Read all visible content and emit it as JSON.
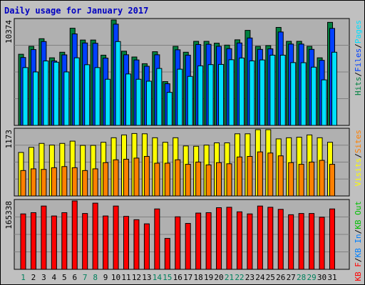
{
  "colors": {
    "background": "#C0C0C0",
    "panel_background": "#B0B0B0",
    "title": "#0000C0",
    "hits": "#008040",
    "files": "#0040FF",
    "pages": "#00E0FF",
    "visits": "#FFFF00",
    "sites": "#FF8000",
    "kbf": "#FF0000",
    "kbin": "#0080FF",
    "kbout": "#00C000",
    "weekend_day": "#00805C",
    "weekday_day": "#008040"
  },
  "chart_data": {
    "type": "bar",
    "title": "Daily usage for January 2017",
    "categories": [
      "1",
      "2",
      "3",
      "4",
      "5",
      "6",
      "7",
      "8",
      "9",
      "10",
      "11",
      "12",
      "13",
      "14",
      "15",
      "16",
      "17",
      "18",
      "19",
      "20",
      "21",
      "22",
      "23",
      "24",
      "25",
      "26",
      "27",
      "28",
      "29",
      "30",
      "31"
    ],
    "weekend_days": [
      "1",
      "7",
      "8",
      "14",
      "15",
      "21",
      "22",
      "28",
      "29"
    ],
    "panels": [
      {
        "name": "hits-files-pages",
        "max_label": "10374",
        "ymax": 10374,
        "legend": [
          "Hits",
          "/",
          "Files",
          "/",
          "Pages"
        ],
        "series": [
          {
            "name": "Hits",
            "values": [
              7000,
              7780,
              8530,
              6650,
              7200,
              9560,
              8400,
              8400,
              6910,
              10374,
              7300,
              6730,
              6070,
              7250,
              4310,
              7780,
              7200,
              8270,
              8270,
              8090,
              7900,
              8420,
              9350,
              7780,
              7850,
              9640,
              8270,
              8270,
              7780,
              6650,
              10140
            ]
          },
          {
            "name": "Files",
            "values": [
              6680,
              7460,
              8250,
              6340,
              6940,
              9000,
              8110,
              8080,
              6620,
              9960,
              6950,
              6440,
              5820,
              6950,
              4100,
              7440,
              6910,
              7960,
              7980,
              7780,
              7550,
              8110,
              8600,
              7480,
              7530,
              9190,
              8000,
              8000,
              7480,
              6400,
              9540
            ]
          },
          {
            "name": "Pages",
            "values": [
              5690,
              5260,
              6340,
              6220,
              5260,
              6650,
              5970,
              5690,
              4540,
              8250,
              5060,
              4540,
              4350,
              5600,
              3250,
              5530,
              4820,
              5860,
              5980,
              6000,
              6460,
              6630,
              6350,
              6440,
              6910,
              6910,
              6180,
              6170,
              5730,
              4480,
              7200
            ]
          }
        ]
      },
      {
        "name": "visits-sites",
        "max_label": "1173",
        "ymax": 1173,
        "legend": [
          "Visits",
          "/",
          "Sites"
        ],
        "series": [
          {
            "name": "Visits",
            "values": [
              770,
              860,
              930,
              900,
              930,
              970,
              895,
              895,
              950,
              1030,
              1080,
              1105,
              1100,
              1030,
              950,
              1030,
              885,
              880,
              900,
              940,
              940,
              1100,
              1100,
              1173,
              1173,
              1010,
              1030,
              1040,
              1080,
              1030,
              950
            ]
          },
          {
            "name": "Sites",
            "values": [
              450,
              480,
              470,
              500,
              520,
              500,
              450,
              480,
              590,
              640,
              650,
              670,
              700,
              580,
              580,
              640,
              560,
              600,
              550,
              590,
              570,
              690,
              700,
              780,
              760,
              710,
              590,
              560,
              600,
              630,
              560
            ]
          }
        ]
      },
      {
        "name": "kbytes",
        "max_label": "165338",
        "ymax": 165338,
        "legend": [
          "KB F",
          "/",
          "KB In",
          "/",
          "KB Out"
        ],
        "series": [
          {
            "name": "KB F",
            "values": [
              134000,
              137000,
              153000,
              129000,
              137000,
              165338,
              135000,
              160000,
              129000,
              153000,
              128000,
              120000,
              110000,
              146000,
              74800,
              127000,
              111000,
              136000,
              137000,
              149000,
              150000,
              139000,
              134000,
              153000,
              150000,
              145000,
              132000,
              135000,
              135000,
              126000,
              146000
            ]
          }
        ]
      }
    ]
  }
}
